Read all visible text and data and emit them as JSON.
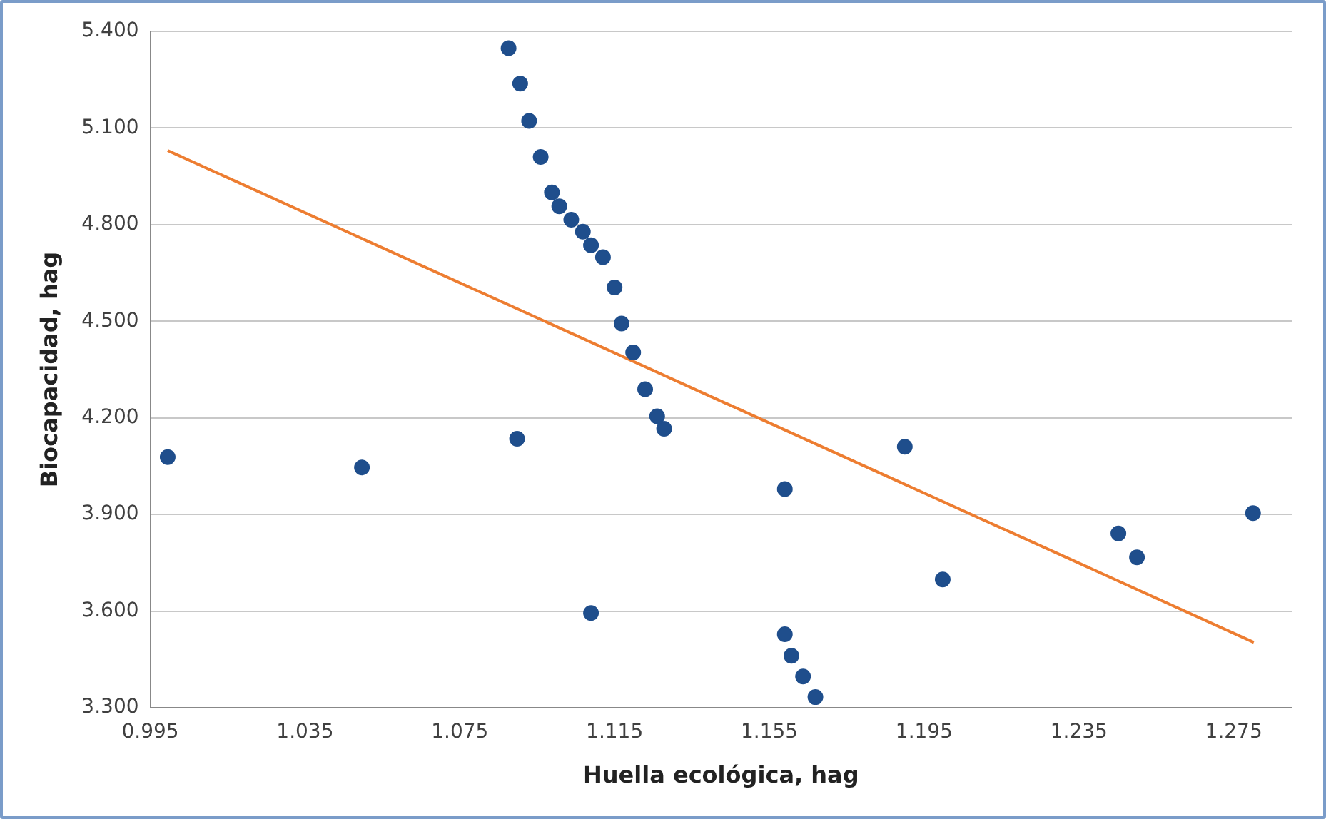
{
  "chart_data": {
    "type": "scatter",
    "xlabel": "Huella ecológica, hag",
    "ylabel": "Biocapacidad, hag",
    "xlim": [
      0.995,
      1.29
    ],
    "xticks": [
      {
        "value": 0.995,
        "label": "0.995"
      },
      {
        "value": 1.035,
        "label": "1.035"
      },
      {
        "value": 1.075,
        "label": "1.075"
      },
      {
        "value": 1.115,
        "label": "1.115"
      },
      {
        "value": 1.155,
        "label": "1.155"
      },
      {
        "value": 1.195,
        "label": "1.195"
      },
      {
        "value": 1.235,
        "label": "1.235"
      },
      {
        "value": 1.275,
        "label": "1.275"
      }
    ],
    "ylim": [
      3.3,
      5.4
    ],
    "yticks": [
      {
        "value": 3.3,
        "label": "3.300"
      },
      {
        "value": 3.6,
        "label": "3.600"
      },
      {
        "value": 3.9,
        "label": "3.900"
      },
      {
        "value": 4.2,
        "label": "4.200"
      },
      {
        "value": 4.5,
        "label": "4.500"
      },
      {
        "value": 4.8,
        "label": "4.800"
      },
      {
        "value": 5.1,
        "label": "5.100"
      },
      {
        "value": 5.4,
        "label": "5.400"
      }
    ],
    "grid": "y",
    "legend": false,
    "series": [
      {
        "type": "scatter",
        "color": "#1f4e8c",
        "marker": "circle",
        "x": [
          1.0876,
          1.0906,
          1.0929,
          1.0959,
          1.0988,
          1.1007,
          1.1038,
          1.1068,
          1.1089,
          1.112,
          1.115,
          1.1168,
          1.1198,
          1.1229,
          1.126,
          1.1278,
          1.0898,
          1.159,
          1.19,
          1.28,
          1.2452,
          1.25,
          1.1998,
          1.1089,
          1.159,
          1.1607,
          1.1637,
          1.1669,
          0.9995,
          1.0497
        ],
        "values": [
          5.348,
          5.238,
          5.122,
          5.01,
          4.9,
          4.857,
          4.815,
          4.778,
          4.736,
          4.699,
          4.605,
          4.493,
          4.403,
          4.289,
          4.205,
          4.166,
          4.135,
          3.979,
          4.11,
          3.904,
          3.841,
          3.767,
          3.698,
          3.594,
          3.528,
          3.461,
          3.397,
          3.333,
          4.078,
          4.046
        ]
      },
      {
        "type": "line",
        "color": "#ed7d31",
        "marker": "none",
        "x": [
          0.9995,
          1.2802
        ],
        "values": [
          5.03,
          3.503
        ]
      }
    ]
  }
}
